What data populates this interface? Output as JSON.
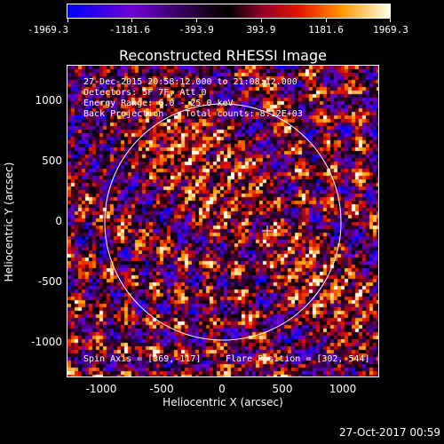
{
  "colorbar": {
    "ticks": [
      "-1969.3",
      "-1181.6",
      "-393.9",
      "393.9",
      "1181.6",
      "1969.3"
    ],
    "min": -1969.3,
    "max": 1969.3
  },
  "title": "Reconstructed RHESSI Image",
  "info": {
    "line1": "27-Dec-2015 20:58:12.000 to 21:08:12.000",
    "line2": "Detectors: 5F 7F, Att 0",
    "line3": "Energy Range: 6.0 - 25.0 keV",
    "line4": "Back Projection    Total counts: 8.12E+03",
    "spin_axis": "Spin Axis = [369,-117]",
    "flare_position": "Flare Position = [302,-544]"
  },
  "axes": {
    "xlabel": "Heliocentric X (arcsec)",
    "ylabel": "Heliocentric Y (arcsec)",
    "xticks": [
      "-1000",
      "-500",
      "0",
      "500",
      "1000"
    ],
    "yticks": [
      "1000",
      "500",
      "0",
      "-500",
      "-1000"
    ]
  },
  "footer_date": "27-Oct-2017 00:59",
  "colors": {
    "limb": "#ffffff",
    "text": "#ffffff",
    "background": "#000000"
  }
}
